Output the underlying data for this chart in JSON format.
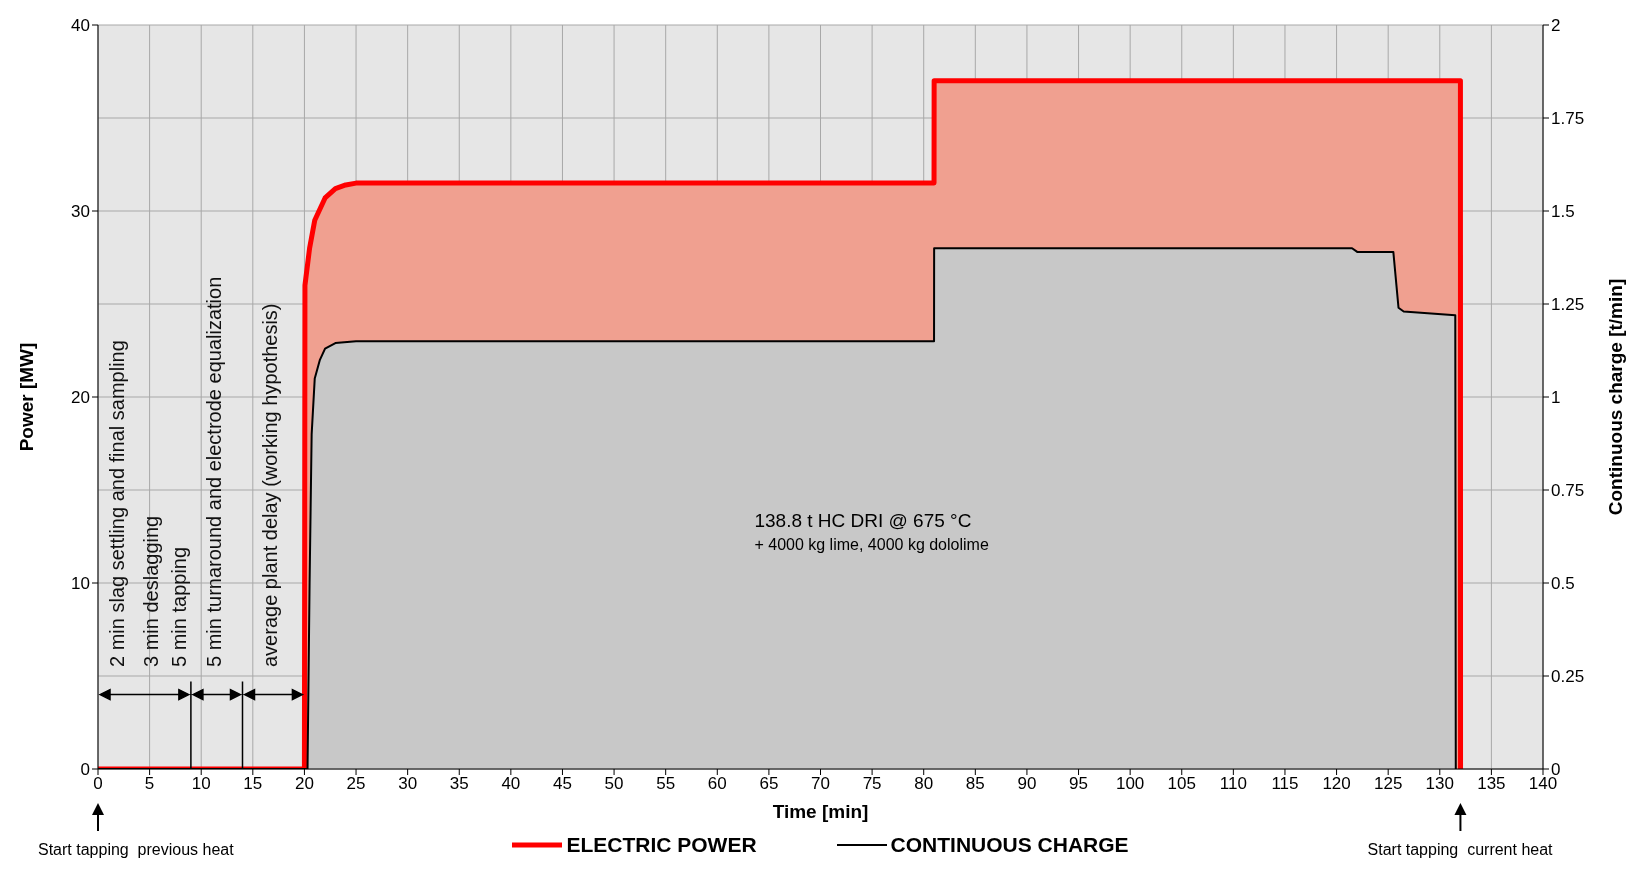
{
  "chart_data": {
    "type": "area",
    "xlabel": "Time [min]",
    "ylabel": "Power [MW]",
    "y2label": "Continuous  charge [t/min]",
    "xlim": [
      0,
      140
    ],
    "xticks": [
      0,
      5,
      10,
      15,
      20,
      25,
      30,
      35,
      40,
      45,
      50,
      55,
      60,
      65,
      70,
      75,
      80,
      85,
      90,
      95,
      100,
      105,
      110,
      115,
      120,
      125,
      130,
      135,
      140
    ],
    "ylim": [
      0,
      40
    ],
    "yticks": [
      0,
      10,
      20,
      30,
      40
    ],
    "y2lim": [
      0,
      2
    ],
    "y2ticks": [
      0,
      0.25,
      0.5,
      0.75,
      1,
      1.25,
      1.5,
      1.75,
      2
    ],
    "grid": true,
    "legend": "bottom",
    "series": [
      {
        "name": "ELECTRIC POWER",
        "color": "#ff0000",
        "axis": "y",
        "x": [
          0,
          20,
          20.05,
          20.5,
          21,
          22,
          23,
          24,
          25,
          81,
          81.01,
          132,
          132.01
        ],
        "values": [
          0,
          0,
          26,
          28,
          29.5,
          30.7,
          31.2,
          31.4,
          31.5,
          31.5,
          37,
          37,
          0
        ]
      },
      {
        "name": "CONTINUOUS CHARGE",
        "color": "#000000",
        "axis": "y2",
        "x": [
          0,
          20.3,
          20.5,
          20.7,
          21,
          21.5,
          22,
          23,
          25,
          81,
          81.01,
          121.5,
          122,
          125.5,
          125.8,
          126,
          126.5,
          131.5,
          131.55
        ],
        "values": [
          0,
          0,
          0.5,
          0.9,
          1.05,
          1.1,
          1.13,
          1.145,
          1.15,
          1.15,
          1.4,
          1.4,
          1.39,
          1.39,
          1.3,
          1.24,
          1.23,
          1.22,
          0
        ]
      }
    ],
    "annotations": [
      "2 min slag settling and final sampling",
      "3 min deslagging",
      "5 min tapping",
      "5 min turnaround and electrode equalization",
      "average plant delay (working hypothesis)",
      "138.8 t HC DRI @ 675 °C",
      "+ 4000 kg lime, 4000 kg dololime",
      "Start tapping  previous heat",
      "Start tapping  current heat"
    ]
  }
}
